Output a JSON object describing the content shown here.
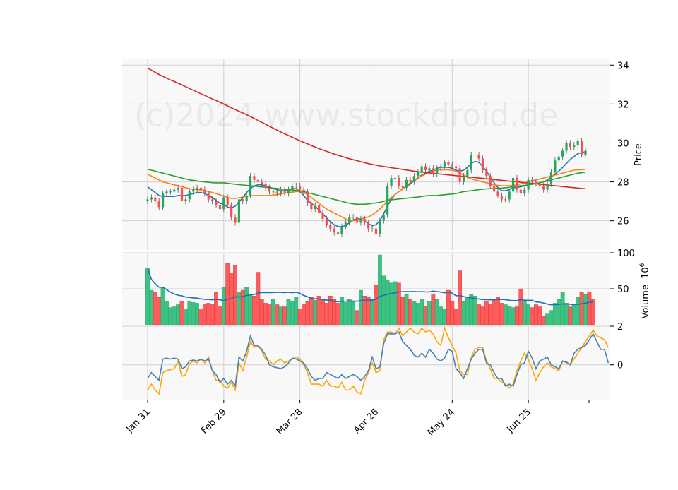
{
  "watermark": "(c)2024 www.stockdroid.de",
  "colors": {
    "up": "#26a65b",
    "down": "#ff4d4d",
    "vol_up": "#3cc383",
    "vol_down": "#ff5b5b",
    "ma_fast": "#1f77b4",
    "ma_mid": "#ff7f0e",
    "ma_slow": "#2ca02c",
    "ma_long": "#d62728",
    "vol_avg": "#1f6fb4",
    "osc_a": "#4682b4",
    "osc_b": "#ffa500",
    "panel_bg": "#f8f8f8",
    "grid": "#d0d0d0"
  },
  "chart_data": [
    {
      "type": "candlestick",
      "ylabel": "Price",
      "ylim": [
        24.5,
        34.3
      ],
      "yticks": [
        26,
        28,
        30,
        32,
        34
      ],
      "x_tick_labels": [
        "Jan 31",
        "Feb 29",
        "Mar 28",
        "Apr 26",
        "May 24",
        "Jun 25"
      ],
      "x_tick_index": [
        0,
        20,
        40,
        60,
        80,
        100
      ],
      "grid": true,
      "close": [
        27.1,
        27.2,
        27.0,
        26.7,
        27.4,
        27.5,
        27.5,
        27.6,
        27.7,
        27.0,
        27.1,
        27.5,
        27.6,
        27.7,
        27.6,
        27.4,
        27.1,
        27.0,
        26.8,
        26.6,
        27.2,
        26.8,
        26.2,
        25.9,
        27.1,
        27.0,
        27.3,
        28.3,
        28.1,
        28.0,
        27.9,
        27.7,
        27.5,
        27.5,
        27.4,
        27.6,
        27.4,
        27.6,
        27.8,
        27.8,
        27.6,
        27.5,
        26.9,
        26.6,
        26.8,
        26.4,
        26.1,
        25.8,
        25.6,
        25.4,
        25.3,
        25.7,
        25.9,
        26.2,
        26.2,
        25.9,
        26.1,
        25.9,
        25.6,
        25.6,
        25.3,
        26.0,
        26.3,
        27.8,
        28.2,
        28.2,
        27.8,
        27.7,
        28.1,
        28.0,
        28.3,
        28.5,
        28.8,
        28.6,
        28.7,
        28.4,
        28.7,
        28.8,
        29.0,
        28.9,
        28.8,
        28.7,
        28.0,
        28.3,
        28.6,
        29.4,
        29.4,
        29.2,
        28.6,
        28.3,
        27.8,
        27.5,
        27.3,
        27.1,
        27.1,
        27.5,
        28.2,
        27.6,
        27.4,
        27.6,
        28.1,
        28.0,
        27.9,
        27.8,
        27.6,
        27.9,
        28.5,
        29.1,
        29.3,
        29.6,
        30.0,
        29.8,
        29.9,
        30.1,
        29.4,
        29.6
      ],
      "series": [
        {
          "name": "",
          "color_key": "ma_fast",
          "values": [
            27.75,
            27.6,
            27.45,
            27.3,
            27.25,
            27.25,
            27.25,
            27.25,
            27.3,
            27.3,
            27.3,
            27.35,
            27.4,
            27.45,
            27.45,
            27.4,
            27.3,
            27.2,
            27.05,
            26.9,
            26.85,
            26.7,
            26.65,
            26.75,
            26.95,
            27.2,
            27.45,
            27.65,
            27.8,
            27.85,
            27.85,
            27.8,
            27.75,
            27.65,
            27.6,
            27.55,
            27.55,
            27.6,
            27.65,
            27.65,
            27.5,
            27.3,
            27.05,
            26.9,
            26.75,
            26.55,
            26.35,
            26.15,
            25.95,
            25.8,
            25.7,
            25.7,
            25.75,
            25.9,
            26.05,
            26.1,
            26.1,
            26.0,
            25.85,
            25.75,
            25.8,
            26.0,
            26.35,
            26.75,
            27.1,
            27.35,
            27.5,
            27.65,
            27.75,
            27.9,
            28.05,
            28.2,
            28.35,
            28.45,
            28.55,
            28.6,
            28.7,
            28.75,
            28.75,
            28.75,
            28.7,
            28.6,
            28.55,
            28.6,
            28.75,
            28.95,
            29.05,
            29.0,
            28.8,
            28.55,
            28.25,
            27.95,
            27.7,
            27.55,
            27.55,
            27.6,
            27.7,
            27.7,
            27.75,
            27.8,
            27.85,
            27.9,
            27.9,
            27.95,
            28.0,
            28.1,
            28.25,
            28.4,
            28.55,
            28.75,
            28.95,
            29.15,
            29.3,
            29.45,
            29.5,
            29.55
          ]
        },
        {
          "name": "",
          "color_key": "ma_mid",
          "values": [
            28.4,
            28.3,
            28.2,
            28.1,
            28.0,
            27.95,
            27.9,
            27.85,
            27.8,
            27.75,
            27.7,
            27.65,
            27.62,
            27.6,
            27.58,
            27.55,
            27.5,
            27.45,
            27.4,
            27.33,
            27.27,
            27.2,
            27.15,
            27.15,
            27.18,
            27.22,
            27.26,
            27.28,
            27.3,
            27.3,
            27.3,
            27.3,
            27.3,
            27.32,
            27.35,
            27.38,
            27.42,
            27.45,
            27.47,
            27.5,
            27.5,
            27.45,
            27.35,
            27.2,
            27.05,
            26.9,
            26.75,
            26.6,
            26.5,
            26.4,
            26.3,
            26.2,
            26.1,
            26.0,
            26.0,
            26.05,
            26.1,
            26.15,
            26.2,
            26.3,
            26.45,
            26.6,
            26.8,
            27.0,
            27.2,
            27.35,
            27.5,
            27.65,
            27.8,
            27.95,
            28.1,
            28.2,
            28.3,
            28.4,
            28.5,
            28.55,
            28.6,
            28.62,
            28.62,
            28.62,
            28.6,
            28.55,
            28.45,
            28.35,
            28.25,
            28.15,
            28.1,
            28.05,
            28.0,
            27.95,
            27.9,
            27.85,
            27.82,
            27.8,
            27.8,
            27.8,
            27.82,
            27.85,
            27.9,
            27.95,
            28.0,
            28.05,
            28.1,
            28.15,
            28.2,
            28.25,
            28.3,
            28.35,
            28.4,
            28.45,
            28.5,
            28.55,
            28.6,
            28.62,
            28.62,
            28.65
          ]
        },
        {
          "name": "",
          "color_key": "ma_slow",
          "values": [
            28.65,
            28.6,
            28.55,
            28.5,
            28.45,
            28.4,
            28.35,
            28.3,
            28.25,
            28.2,
            28.15,
            28.1,
            28.08,
            28.05,
            28.02,
            28.0,
            27.98,
            27.96,
            27.95,
            27.95,
            27.95,
            27.93,
            27.9,
            27.88,
            27.86,
            27.84,
            27.82,
            27.8,
            27.78,
            27.76,
            27.74,
            27.72,
            27.7,
            27.68,
            27.66,
            27.64,
            27.62,
            27.6,
            27.58,
            27.56,
            27.54,
            27.5,
            27.45,
            27.4,
            27.35,
            27.3,
            27.25,
            27.2,
            27.15,
            27.1,
            27.05,
            27.0,
            26.95,
            26.9,
            26.87,
            26.85,
            26.85,
            26.85,
            26.87,
            26.9,
            26.92,
            26.95,
            27.0,
            27.05,
            27.08,
            27.1,
            27.12,
            27.14,
            27.16,
            27.18,
            27.2,
            27.22,
            27.25,
            27.28,
            27.3,
            27.3,
            27.3,
            27.32,
            27.34,
            27.36,
            27.38,
            27.4,
            27.45,
            27.5,
            27.52,
            27.55,
            27.57,
            27.6,
            27.62,
            27.64,
            27.65,
            27.66,
            27.67,
            27.68,
            27.7,
            27.72,
            27.75,
            27.78,
            27.8,
            27.82,
            27.85,
            27.88,
            27.92,
            27.95,
            28.0,
            28.05,
            28.1,
            28.15,
            28.2,
            28.25,
            28.3,
            28.35,
            28.4,
            28.45,
            28.47,
            28.5
          ]
        },
        {
          "name": "",
          "color_key": "ma_long",
          "values": [
            33.85,
            33.74,
            33.63,
            33.52,
            33.42,
            33.33,
            33.24,
            33.16,
            33.07,
            32.98,
            32.89,
            32.8,
            32.71,
            32.62,
            32.53,
            32.44,
            32.35,
            32.26,
            32.18,
            32.09,
            32.0,
            31.9,
            31.81,
            31.72,
            31.63,
            31.54,
            31.45,
            31.36,
            31.26,
            31.16,
            31.06,
            30.96,
            30.86,
            30.76,
            30.66,
            30.56,
            30.47,
            30.38,
            30.29,
            30.2,
            30.11,
            30.03,
            29.95,
            29.87,
            29.79,
            29.71,
            29.64,
            29.57,
            29.5,
            29.43,
            29.37,
            29.31,
            29.25,
            29.19,
            29.14,
            29.09,
            29.04,
            28.99,
            28.94,
            28.9,
            28.86,
            28.82,
            28.79,
            28.76,
            28.73,
            28.7,
            28.67,
            28.64,
            28.61,
            28.58,
            28.55,
            28.52,
            28.5,
            28.48,
            28.46,
            28.44,
            28.42,
            28.4,
            28.38,
            28.36,
            28.34,
            28.32,
            28.3,
            28.28,
            28.26,
            28.24,
            28.22,
            28.2,
            28.18,
            28.16,
            28.14,
            28.12,
            28.1,
            28.08,
            28.06,
            28.04,
            28.02,
            28.0,
            27.98,
            27.96,
            27.94,
            27.92,
            27.9,
            27.88,
            27.86,
            27.84,
            27.82,
            27.8,
            27.78,
            27.76,
            27.74,
            27.72,
            27.7,
            27.68,
            27.66,
            27.65
          ]
        }
      ]
    },
    {
      "type": "bar",
      "ylabel": "Volume",
      "ylabel_exponent": "6",
      "ylim": [
        0,
        100
      ],
      "yticks": [
        50,
        100
      ],
      "values": [
        78,
        48,
        45,
        38,
        52,
        32,
        24,
        25,
        28,
        32,
        22,
        32,
        31,
        30,
        22,
        28,
        30,
        28,
        45,
        25,
        52,
        85,
        72,
        82,
        45,
        48,
        52,
        42,
        40,
        73,
        35,
        30,
        28,
        35,
        28,
        25,
        25,
        35,
        33,
        38,
        22,
        28,
        32,
        38,
        34,
        40,
        36,
        30,
        40,
        35,
        30,
        39,
        31,
        35,
        32,
        20,
        48,
        40,
        38,
        35,
        55,
        97,
        68,
        62,
        58,
        60,
        58,
        38,
        42,
        36,
        32,
        30,
        36,
        26,
        33,
        43,
        35,
        25,
        22,
        48,
        32,
        22,
        75,
        32,
        38,
        42,
        40,
        28,
        25,
        32,
        28,
        35,
        38,
        30,
        28,
        26,
        24,
        25,
        50,
        33,
        28,
        24,
        28,
        25,
        12,
        15,
        20,
        30,
        35,
        45,
        30,
        25,
        28,
        38,
        45,
        42,
        45,
        35
      ]
    },
    {
      "type": "line",
      "ylim": [
        -1.8,
        2.0
      ],
      "yticks": [
        0,
        2
      ],
      "series": [
        {
          "name": "",
          "color_key": "osc_a",
          "values": [
            -0.7,
            -0.4,
            -0.6,
            -0.8,
            0.3,
            0.35,
            0.3,
            0.35,
            0.3,
            -0.2,
            -0.1,
            0.2,
            0.25,
            0.2,
            0.3,
            0.2,
            0.3,
            -0.3,
            -0.5,
            -0.9,
            -0.7,
            -1.0,
            -0.8,
            -1.1,
            0.4,
            0.2,
            0.7,
            1.5,
            1.0,
            1.0,
            0.8,
            0.5,
            0.0,
            -0.1,
            -0.15,
            -0.2,
            -0.1,
            0.1,
            0.35,
            0.3,
            0.2,
            0.1,
            -0.2,
            -0.6,
            -0.8,
            -0.7,
            -0.7,
            -0.4,
            -0.5,
            -0.6,
            -0.7,
            -0.5,
            -0.7,
            -0.6,
            -0.5,
            -0.6,
            -0.8,
            -0.6,
            -0.3,
            0.4,
            -0.2,
            -0.1,
            1.1,
            1.6,
            1.6,
            1.6,
            1.7,
            1.2,
            1.0,
            0.8,
            0.5,
            0.4,
            0.6,
            0.4,
            0.8,
            0.6,
            0.3,
            0.2,
            0.35,
            0.8,
            0.7,
            -0.2,
            -0.4,
            -0.7,
            -0.2,
            0.3,
            0.6,
            0.8,
            0.8,
            0.1,
            0.0,
            -0.4,
            -0.7,
            -0.7,
            -1.1,
            -1.0,
            -1.1,
            -0.5,
            0.0,
            0.1,
            0.7,
            0.35,
            -0.2,
            0.2,
            0.3,
            0.4,
            0.0,
            -0.1,
            -0.2,
            0.2,
            0.15,
            0.0,
            0.6,
            0.8,
            0.9,
            1.0,
            1.3,
            1.6,
            1.2,
            0.8,
            0.8,
            0.1
          ]
        },
        {
          "name": "",
          "color_key": "osc_b",
          "values": [
            -1.3,
            -1.0,
            -1.3,
            -1.5,
            -0.4,
            -0.3,
            -0.25,
            -0.2,
            0.2,
            -0.6,
            -0.5,
            0.05,
            0.2,
            0.1,
            0.3,
            0.1,
            0.4,
            -0.3,
            -0.8,
            -0.8,
            -1.1,
            -1.2,
            -0.9,
            -1.3,
            0.1,
            -0.3,
            0.4,
            1.2,
            0.9,
            1.0,
            0.7,
            0.3,
            0.2,
            0.0,
            0.2,
            0.3,
            0.1,
            0.2,
            0.3,
            0.4,
            0.3,
            0.0,
            -0.4,
            -1.0,
            -1.0,
            -1.0,
            -1.1,
            -0.8,
            -1.1,
            -1.1,
            -1.2,
            -0.9,
            -1.3,
            -1.3,
            -1.1,
            -1.4,
            -1.5,
            -0.8,
            -0.4,
            0.1,
            -0.4,
            -0.3,
            1.3,
            1.7,
            1.7,
            1.6,
            1.9,
            1.5,
            1.7,
            1.9,
            1.7,
            1.6,
            1.9,
            1.7,
            1.8,
            1.6,
            1.2,
            1.0,
            1.9,
            1.4,
            1.0,
            0.6,
            -0.3,
            -0.5,
            -0.5,
            0.4,
            0.8,
            0.9,
            0.9,
            0.2,
            -0.2,
            -0.7,
            -0.7,
            -0.9,
            -1.0,
            -1.2,
            -1.0,
            -0.3,
            0.2,
            0.6,
            0.3,
            -0.2,
            -0.8,
            -0.4,
            -0.1,
            0.1,
            -0.1,
            -0.2,
            -0.3,
            0.2,
            0.1,
            0.0,
            0.3,
            0.6,
            0.9,
            1.2,
            1.5,
            1.8,
            1.5,
            1.4,
            1.3,
            0.9
          ]
        }
      ]
    }
  ]
}
